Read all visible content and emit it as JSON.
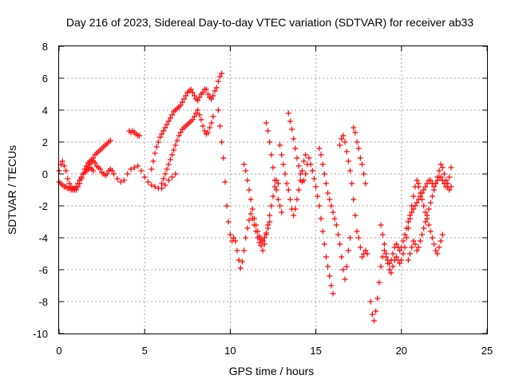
{
  "chart_data": {
    "type": "scatter",
    "title": "Day 216 of 2023, Sidereal Day-to-day VTEC variation (SDTVAR) for receiver ab33",
    "xlabel": "GPS time / hours",
    "ylabel": "SDTVAR / TECUs",
    "xlim": [
      0,
      25
    ],
    "ylim": [
      -10,
      8
    ],
    "xticks": [
      0,
      5,
      10,
      15,
      20,
      25
    ],
    "yticks": [
      8,
      6,
      4,
      2,
      0,
      -2,
      -4,
      -6,
      -8,
      -10
    ],
    "xtick_labels": [
      "0",
      "5",
      "10",
      "15",
      "20",
      "25"
    ],
    "ytick_labels": [
      "8",
      "6",
      "4",
      "2",
      "0",
      "-2",
      "-4",
      "-6",
      "-8",
      "-10"
    ],
    "grid": true,
    "marker": "+",
    "color": "#ff0000",
    "series": [
      {
        "x": [
          0.0,
          0.1,
          0.2,
          0.3,
          0.4,
          0.5,
          0.6,
          0.7,
          0.8,
          0.9,
          1.0,
          1.1,
          1.2,
          1.3,
          1.4,
          1.5,
          1.6,
          1.7,
          1.8,
          1.9,
          2.0,
          2.1,
          2.2,
          2.3,
          2.4,
          2.5,
          2.6,
          2.7,
          2.8,
          2.9,
          3.0,
          3.1,
          3.2,
          3.4,
          3.6,
          3.8,
          4.0,
          4.2,
          4.4,
          4.6,
          4.8,
          5.0,
          5.2,
          5.4,
          5.6,
          5.8,
          6.0,
          6.2,
          6.4,
          6.6,
          6.8
        ],
        "y": [
          0.2,
          0.6,
          0.8,
          0.5,
          0.2,
          -0.3,
          -0.6,
          -0.8,
          -0.9,
          -1.0,
          -1.0,
          -0.8,
          -0.6,
          -0.3,
          0.0,
          0.3,
          0.5,
          0.7,
          0.8,
          0.9,
          0.8,
          0.7,
          0.5,
          0.4,
          0.3,
          0.1,
          0.0,
          -0.1,
          0.0,
          0.2,
          0.3,
          0.2,
          0.0,
          -0.3,
          -0.5,
          -0.4,
          0.0,
          0.3,
          0.4,
          0.5,
          0.2,
          -0.2,
          -0.5,
          -0.7,
          -0.8,
          -0.9,
          -0.9,
          -0.7,
          -0.4,
          -0.2,
          0.0
        ]
      },
      {
        "x": [
          0.0,
          0.1,
          0.2,
          0.3,
          0.4,
          0.5,
          0.6,
          0.7,
          0.8,
          0.9,
          1.0,
          1.1,
          1.2,
          1.3,
          1.4,
          1.5,
          1.6,
          1.7,
          1.8,
          1.9,
          2.0
        ],
        "y": [
          -0.5,
          -0.6,
          -0.7,
          -0.8,
          -0.8,
          -0.9,
          -0.9,
          -1.0,
          -1.0,
          -0.9,
          -0.8,
          -0.6,
          -0.4,
          -0.2,
          0.0,
          0.1,
          0.2,
          0.3,
          0.4,
          0.3,
          0.2
        ]
      },
      {
        "x": [
          1.6,
          1.7,
          1.8,
          1.9,
          2.0,
          2.1,
          2.2,
          2.3,
          2.4,
          2.5,
          2.6,
          2.7,
          2.8,
          2.9,
          3.0
        ],
        "y": [
          0.2,
          0.4,
          0.6,
          0.8,
          1.0,
          1.2,
          1.3,
          1.4,
          1.5,
          1.6,
          1.7,
          1.8,
          1.9,
          2.0,
          2.1
        ]
      },
      {
        "x": [
          4.1,
          4.2,
          4.3,
          4.4,
          4.5,
          4.6,
          4.7
        ],
        "y": [
          2.7,
          2.6,
          2.7,
          2.6,
          2.5,
          2.4,
          2.4
        ]
      },
      {
        "x": [
          5.4,
          5.5,
          5.6,
          5.7,
          5.8,
          5.9,
          6.0,
          6.1,
          6.2,
          6.3,
          6.4,
          6.5,
          6.6,
          6.7,
          6.8,
          6.9,
          7.0,
          7.1,
          7.2,
          7.3,
          7.4,
          7.5,
          7.6,
          7.7,
          7.8,
          7.9,
          8.0,
          8.1,
          8.2,
          8.3,
          8.4,
          8.5,
          8.6,
          8.7,
          8.8,
          8.9,
          9.0,
          9.1,
          9.2,
          9.3,
          9.4,
          9.5
        ],
        "y": [
          0.3,
          0.8,
          1.3,
          1.7,
          2.0,
          2.3,
          2.5,
          2.7,
          2.9,
          3.1,
          3.3,
          3.5,
          3.7,
          3.9,
          4.0,
          4.1,
          4.2,
          4.3,
          4.5,
          4.7,
          4.9,
          5.1,
          5.2,
          5.3,
          5.1,
          4.9,
          4.7,
          4.6,
          4.8,
          5.0,
          5.1,
          5.3,
          5.3,
          5.0,
          4.8,
          4.7,
          4.9,
          5.2,
          5.4,
          5.8,
          6.1,
          6.3
        ]
      },
      {
        "x": [
          6.0,
          6.1,
          6.2,
          6.3,
          6.4,
          6.5,
          6.6,
          6.7,
          6.8,
          6.9,
          7.0,
          7.1,
          7.2,
          7.3,
          7.4,
          7.5,
          7.6,
          7.7,
          7.8,
          7.9,
          8.0,
          8.1,
          8.2,
          8.3,
          8.4,
          8.5,
          8.6,
          8.7,
          8.8,
          8.9,
          9.0
        ],
        "y": [
          -0.6,
          -0.3,
          0.0,
          0.3,
          0.6,
          0.9,
          1.2,
          1.5,
          1.8,
          2.1,
          2.4,
          2.6,
          2.8,
          2.9,
          3.0,
          3.1,
          3.2,
          3.3,
          3.4,
          3.6,
          3.8,
          4.0,
          3.7,
          3.4,
          3.0,
          2.7,
          2.5,
          2.6,
          2.9,
          3.2,
          3.6
        ]
      },
      {
        "x": [
          9.3,
          9.4,
          9.5,
          9.6,
          9.7,
          9.8,
          9.9,
          10.0,
          10.1,
          10.2
        ],
        "y": [
          4.0,
          3.0,
          2.0,
          1.0,
          -0.5,
          -2.0,
          -3.0,
          -3.8,
          -4.2,
          -4.0
        ]
      },
      {
        "x": [
          10.3,
          10.4,
          10.5,
          10.6,
          10.7,
          10.8,
          10.9,
          11.0,
          11.1,
          11.2,
          11.3,
          11.4,
          11.5,
          11.6,
          11.7,
          11.8,
          11.9,
          12.0,
          12.1,
          12.2,
          12.3,
          12.4,
          12.5,
          12.6,
          12.7,
          12.8
        ],
        "y": [
          -4.2,
          -4.8,
          -5.4,
          -5.9,
          -5.5,
          -4.8,
          -4.0,
          -3.4,
          -2.9,
          -2.5,
          -2.8,
          -3.2,
          -3.6,
          -4.0,
          -4.3,
          -4.5,
          -4.8,
          -4.4,
          -3.8,
          -3.2,
          -2.6,
          -2.0,
          -1.4,
          -0.8,
          -0.4,
          -0.6
        ]
      },
      {
        "x": [
          10.8,
          10.9,
          11.0,
          11.1,
          11.2,
          11.3,
          11.4,
          11.5,
          11.6,
          11.7,
          11.8,
          11.9,
          12.0,
          12.1,
          12.2,
          12.3
        ],
        "y": [
          0.6,
          0.2,
          -0.4,
          -1.0,
          -1.6,
          -2.2,
          -2.8,
          -3.2,
          -3.6,
          -3.9,
          -4.1,
          -4.2,
          -4.0,
          -3.7,
          -3.4,
          -3.0
        ]
      },
      {
        "x": [
          12.1,
          12.2,
          12.3,
          12.4,
          12.5,
          12.6,
          12.7,
          12.8,
          12.9,
          13.0
        ],
        "y": [
          3.2,
          2.7,
          2.0,
          1.2,
          0.4,
          -0.4,
          -1.0,
          -1.6,
          -2.0,
          -2.4
        ]
      },
      {
        "x": [
          13.4,
          13.5,
          13.6,
          13.7,
          13.8,
          13.9,
          14.0,
          14.1,
          14.2,
          14.3,
          14.4,
          14.5,
          14.6,
          14.7,
          14.8,
          14.9,
          15.0,
          15.1,
          15.2,
          15.3,
          15.4,
          15.5,
          15.6,
          15.7,
          15.8,
          15.9,
          16.0
        ],
        "y": [
          3.8,
          3.3,
          2.8,
          2.2,
          1.6,
          1.0,
          0.5,
          0.0,
          -0.5,
          -0.4,
          0.0,
          0.6,
          1.0,
          0.6,
          0.2,
          -0.3,
          -0.8,
          -1.4,
          -2.0,
          -2.8,
          -3.6,
          -4.4,
          -5.2,
          -5.8,
          -6.4,
          -7.0,
          -7.5
        ]
      },
      {
        "x": [
          12.9,
          13.0,
          13.1,
          13.2,
          13.3,
          13.4,
          13.5,
          13.6,
          13.7,
          13.8,
          13.9,
          14.0,
          14.1,
          14.2,
          14.3,
          14.4
        ],
        "y": [
          1.8,
          1.2,
          0.6,
          0.0,
          -0.6,
          -1.0,
          -1.6,
          -2.2,
          -2.6,
          -2.2,
          -1.6,
          -1.0,
          -0.4,
          0.2,
          0.8,
          1.2
        ]
      },
      {
        "x": [
          15.2,
          15.3,
          15.4,
          15.5,
          15.6,
          15.7,
          15.8,
          15.9,
          16.0,
          16.1,
          16.2,
          16.3,
          16.4,
          16.5,
          16.6,
          16.7,
          16.8,
          16.9,
          17.0
        ],
        "y": [
          1.6,
          1.2,
          0.6,
          0.0,
          -0.6,
          -1.2,
          -1.6,
          -2.0,
          -2.4,
          -2.8,
          -3.2,
          -3.8,
          -4.4,
          -5.2,
          -6.0,
          -6.6,
          -5.8,
          -4.8,
          -4.0
        ]
      },
      {
        "x": [
          16.4,
          16.5,
          16.6,
          16.7,
          16.8,
          16.9,
          17.0,
          17.1,
          17.2,
          17.3,
          17.4,
          17.5,
          17.6,
          17.7,
          17.8,
          17.9,
          18.0
        ],
        "y": [
          1.8,
          2.2,
          2.4,
          2.0,
          1.4,
          0.8,
          0.2,
          -0.6,
          -1.6,
          -2.6,
          -3.6,
          -4.0,
          -4.6,
          -5.2,
          -5.0,
          -4.8,
          -5.0
        ]
      },
      {
        "x": [
          17.2,
          17.3,
          17.4,
          17.5,
          17.6,
          17.7,
          17.8,
          17.9
        ],
        "y": [
          2.9,
          2.6,
          2.0,
          1.6,
          1.0,
          0.6,
          0.0,
          -0.6
        ]
      },
      {
        "x": [
          18.2,
          18.3,
          18.4,
          18.5,
          18.6,
          18.7,
          18.8,
          18.9,
          19.0,
          19.1,
          19.2,
          19.3,
          19.4,
          19.5,
          19.6,
          19.7,
          19.8,
          19.9,
          20.0,
          20.1,
          20.2,
          20.3,
          20.4,
          20.5,
          20.6,
          20.7,
          20.8,
          20.9,
          21.0
        ],
        "y": [
          -8.0,
          -8.8,
          -9.2,
          -8.6,
          -7.8,
          -6.8,
          -5.8,
          -5.2,
          -4.8,
          -5.2,
          -5.6,
          -6.0,
          -6.2,
          -5.8,
          -5.4,
          -5.2,
          -5.4,
          -5.6,
          -5.4,
          -5.0,
          -4.6,
          -4.0,
          -3.4,
          -2.8,
          -2.0,
          -1.4,
          -0.8,
          -0.4,
          -0.6
        ]
      },
      {
        "x": [
          18.8,
          18.9,
          19.0,
          19.1,
          19.2,
          19.3,
          19.4,
          19.5,
          19.6,
          19.7,
          19.8,
          19.9,
          20.0,
          20.1,
          20.2,
          20.3,
          20.4,
          20.5,
          20.6,
          20.7,
          20.8,
          20.9,
          21.0,
          21.1,
          21.2,
          21.3,
          21.4,
          21.5,
          21.6,
          21.7,
          21.8,
          21.9,
          22.0,
          22.1,
          22.2,
          22.3,
          22.4,
          22.5,
          22.6,
          22.7,
          22.8,
          22.9
        ],
        "y": [
          -3.2,
          -3.8,
          -4.4,
          -5.0,
          -5.4,
          -5.6,
          -5.4,
          -5.0,
          -4.6,
          -4.4,
          -4.6,
          -4.8,
          -4.6,
          -4.2,
          -3.8,
          -3.4,
          -3.0,
          -2.6,
          -2.4,
          -2.2,
          -2.0,
          -1.8,
          -1.6,
          -1.4,
          -1.2,
          -1.0,
          -0.8,
          -0.6,
          -0.4,
          -0.4,
          -0.6,
          -0.8,
          -0.6,
          -0.4,
          -0.2,
          -0.2,
          -0.4,
          -0.6,
          -0.8,
          -0.6,
          -0.2,
          0.4
        ]
      },
      {
        "x": [
          20.4,
          20.5,
          20.6,
          20.7,
          20.8,
          20.9,
          21.0,
          21.1,
          21.2,
          21.3,
          21.4,
          21.5,
          21.6,
          21.7,
          21.8,
          21.9,
          22.0,
          22.1,
          22.2,
          22.3,
          22.4,
          22.5,
          22.6,
          22.7,
          22.8,
          22.9
        ],
        "y": [
          -5.4,
          -5.0,
          -4.6,
          -4.2,
          -4.4,
          -4.8,
          -4.6,
          -4.2,
          -3.8,
          -3.4,
          -3.0,
          -2.6,
          -2.2,
          -1.8,
          -1.4,
          -1.0,
          -0.6,
          -0.2,
          0.2,
          0.6,
          0.4,
          0.0,
          -0.4,
          -0.8,
          -1.0,
          -0.8
        ]
      },
      {
        "x": [
          21.0,
          21.1,
          21.2,
          21.3,
          21.4,
          21.5,
          21.6,
          21.7,
          21.8,
          21.9,
          22.0,
          22.1,
          22.2,
          22.3,
          22.4
        ],
        "y": [
          -0.8,
          -1.2,
          -1.6,
          -2.0,
          -2.4,
          -2.8,
          -3.2,
          -3.6,
          -4.0,
          -4.4,
          -4.8,
          -5.0,
          -4.6,
          -4.2,
          -3.8
        ]
      }
    ]
  }
}
